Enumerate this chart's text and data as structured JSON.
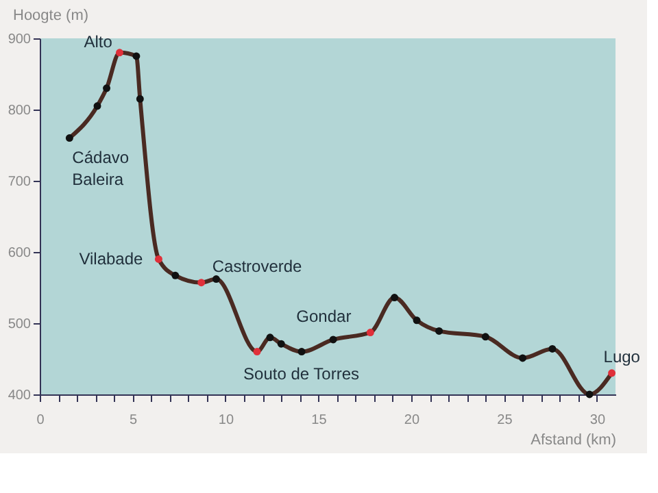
{
  "chart_data": {
    "type": "line",
    "xlabel": "Afstand (km)",
    "ylabel": "Hoogte (m)",
    "x": [
      1.6,
      3.1,
      3.6,
      4.3,
      5.2,
      5.4,
      6.4,
      7.3,
      8.7,
      9.5,
      11.7,
      12.4,
      13.0,
      14.1,
      15.8,
      17.8,
      19.1,
      20.3,
      21.5,
      24.0,
      26.0,
      27.6,
      29.6,
      30.8
    ],
    "series": [
      {
        "color": "#4a2a22",
        "values": [
          760,
          805,
          830,
          880,
          875,
          815,
          590,
          567,
          557,
          562,
          460,
          480,
          471,
          460,
          477,
          487,
          536,
          504,
          489,
          481,
          451,
          464,
          400,
          430
        ],
        "colors": [
          "#111111",
          "#111111",
          "#111111",
          "#e0303a",
          "#111111",
          "#111111",
          "#e0303a",
          "#111111",
          "#e0303a",
          "#111111",
          "#e0303a",
          "#111111",
          "#111111",
          "#111111",
          "#111111",
          "#e0303a",
          "#111111",
          "#111111",
          "#111111",
          "#111111",
          "#111111",
          "#111111",
          "#111111",
          "#e0303a"
        ]
      }
    ],
    "annotations": [
      {
        "text": "Alto",
        "x": 4.3,
        "y": 880
      },
      {
        "text": "Cádavo Baleira",
        "x": 1.6,
        "y": 760
      },
      {
        "text": "Vilabade",
        "x": 6.4,
        "y": 590
      },
      {
        "text": "Castroverde",
        "x": 8.7,
        "y": 557
      },
      {
        "text": "Souto de Torres",
        "x": 11.7,
        "y": 460
      },
      {
        "text": "Gondar",
        "x": 17.8,
        "y": 487
      },
      {
        "text": "Lugo",
        "x": 30.8,
        "y": 430
      }
    ],
    "xlim": [
      0,
      31
    ],
    "ylim": [
      400,
      900
    ],
    "xticks": [
      0,
      {
        "value": 1,
        "label": null
      },
      {
        "value": 2,
        "label": null
      },
      {
        "value": 3,
        "label": null
      },
      {
        "value": 4,
        "label": null
      },
      5,
      {
        "value": 6,
        "label": null
      },
      {
        "value": 7,
        "label": null
      },
      {
        "value": 8,
        "label": null
      },
      {
        "value": 9,
        "label": null
      },
      10,
      {
        "value": 11,
        "label": null
      },
      {
        "value": 12,
        "label": null
      },
      {
        "value": 13,
        "label": null
      },
      {
        "value": 14,
        "label": null
      },
      15,
      {
        "value": 16,
        "label": null
      },
      {
        "value": 17,
        "label": null
      },
      {
        "value": 18,
        "label": null
      },
      {
        "value": 19,
        "label": null
      },
      20,
      {
        "value": 21,
        "label": null
      },
      {
        "value": 22,
        "label": null
      },
      {
        "value": 23,
        "label": null
      },
      {
        "value": 24,
        "label": null
      },
      25,
      {
        "value": 26,
        "label": null
      },
      {
        "value": 27,
        "label": null
      },
      {
        "value": 28,
        "label": null
      },
      {
        "value": 29,
        "label": null
      },
      30
    ],
    "yticks": [
      400,
      500,
      600,
      700,
      800,
      900
    ],
    "marker": "circle",
    "line_style": "solid",
    "grid": false
  }
}
